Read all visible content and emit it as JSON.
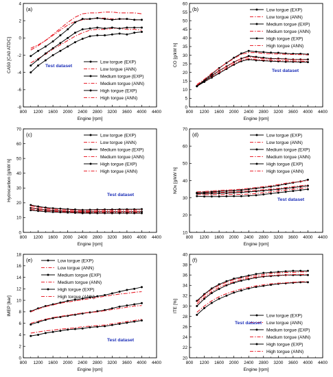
{
  "chart_data": [
    {
      "panel_label": "(a)",
      "type": "line",
      "xlabel": "Engine [rpm]",
      "ylabel": "CA50 [CA0 ATDC]",
      "xlim": [
        800,
        4400
      ],
      "ylim": [
        -8,
        4
      ],
      "xticks": [
        800,
        1200,
        1600,
        2000,
        2400,
        2800,
        3200,
        3600,
        4000,
        4400
      ],
      "yticks": [
        -8,
        -6,
        -4,
        -2,
        0,
        2,
        4
      ],
      "annotation": "Test dataset",
      "legend_position": "lower-right",
      "x": [
        1000,
        1200,
        1400,
        1600,
        1800,
        2000,
        2200,
        2400,
        2600,
        2800,
        3000,
        3200,
        3400,
        3600,
        3800,
        4000
      ],
      "series": [
        {
          "name": "Low torgue (EXP)",
          "style": "exp",
          "values": [
            -4.0,
            -3.2,
            -2.6,
            -2.0,
            -1.5,
            -1.0,
            -0.5,
            -0.1,
            0.2,
            0.3,
            0.3,
            0.4,
            0.5,
            0.4,
            0.6,
            0.7
          ]
        },
        {
          "name": "Low torgue (ANN)",
          "style": "ann",
          "values": [
            -2.9,
            -2.4,
            -1.9,
            -1.3,
            -0.8,
            -0.3,
            0.2,
            0.6,
            0.9,
            1.0,
            1.0,
            1.1,
            1.1,
            1.0,
            1.0,
            0.9
          ]
        },
        {
          "name": "Medium torgue (EXP)",
          "style": "exp",
          "values": [
            -3.2,
            -2.5,
            -1.8,
            -1.2,
            -0.6,
            0.0,
            0.6,
            1.0,
            1.1,
            1.2,
            1.1,
            1.2,
            1.1,
            1.2,
            1.2,
            1.2
          ]
        },
        {
          "name": "Medium torgue (ANN)",
          "style": "ann",
          "values": [
            -1.2,
            -0.8,
            -0.3,
            0.3,
            0.9,
            1.5,
            1.9,
            2.1,
            2.2,
            2.3,
            2.3,
            2.2,
            2.2,
            2.2,
            2.1,
            2.1
          ]
        },
        {
          "name": "High torgue (EXP)",
          "style": "exp",
          "values": [
            -2.1,
            -1.5,
            -1.0,
            -0.4,
            0.3,
            1.0,
            1.8,
            2.2,
            2.2,
            2.3,
            2.2,
            2.1,
            2.2,
            2.2,
            2.1,
            2.1
          ]
        },
        {
          "name": "High torgue (ANN)",
          "style": "ann",
          "values": [
            -1.4,
            -0.9,
            -0.3,
            0.4,
            1.1,
            1.8,
            2.4,
            2.8,
            2.9,
            2.9,
            3.0,
            3.0,
            2.9,
            2.9,
            2.9,
            2.8
          ]
        }
      ]
    },
    {
      "panel_label": "(b)",
      "type": "line",
      "xlabel": "Engine [rpm]",
      "ylabel": "CO [g/kW h]",
      "xlim": [
        800,
        4400
      ],
      "ylim": [
        0,
        60
      ],
      "xticks": [
        800,
        1200,
        1600,
        2000,
        2400,
        2800,
        3200,
        3600,
        4000,
        4400
      ],
      "yticks": [
        0,
        5,
        10,
        15,
        20,
        25,
        30,
        35,
        40,
        45,
        50,
        55,
        60
      ],
      "annotation": "Test dataset",
      "legend_position": "top-right",
      "x": [
        1000,
        1200,
        1400,
        1600,
        1800,
        2000,
        2200,
        2400,
        2600,
        2800,
        3000,
        3200,
        3400,
        3600,
        3800,
        4000
      ],
      "series": [
        {
          "name": "Low torgue (EXP)",
          "style": "exp",
          "values": [
            12.0,
            14.5,
            17.0,
            19.5,
            22.0,
            24.5,
            26.5,
            27.5,
            27.0,
            26.8,
            26.5,
            26.4,
            26.2,
            26.2,
            26.0,
            26.0
          ]
        },
        {
          "name": "Low torgue (ANN)",
          "style": "ann",
          "values": [
            12.5,
            15.0,
            17.5,
            20.0,
            22.5,
            25.0,
            27.0,
            28.0,
            27.5,
            27.2,
            27.0,
            26.8,
            26.8,
            26.6,
            26.5,
            26.4
          ]
        },
        {
          "name": "Medium torgue (EXP)",
          "style": "exp",
          "values": [
            12.0,
            15.0,
            18.0,
            21.0,
            23.5,
            26.0,
            28.0,
            29.5,
            29.0,
            28.5,
            28.0,
            28.0,
            27.8,
            27.5,
            27.5,
            27.5
          ]
        },
        {
          "name": "Medium torgue (ANN)",
          "style": "ann",
          "values": [
            12.5,
            15.5,
            18.5,
            21.0,
            23.5,
            26.0,
            28.0,
            29.0,
            28.5,
            28.0,
            27.8,
            27.8,
            27.6,
            27.5,
            27.4,
            27.3
          ]
        },
        {
          "name": "High torgue (EXP)",
          "style": "exp",
          "values": [
            12.0,
            15.5,
            19.0,
            22.5,
            25.5,
            28.5,
            31.0,
            32.5,
            32.0,
            31.8,
            31.5,
            31.4,
            31.0,
            30.8,
            30.8,
            30.5
          ]
        },
        {
          "name": "High torgue (ANN)",
          "style": "ann",
          "values": [
            13.0,
            16.0,
            19.5,
            22.5,
            25.5,
            28.0,
            30.5,
            31.5,
            31.5,
            31.0,
            30.8,
            30.7,
            30.5,
            30.4,
            30.3,
            30.2
          ]
        }
      ]
    },
    {
      "panel_label": "(c)",
      "type": "line",
      "xlabel": "Engine [rpm]",
      "ylabel": "Hydrocarbon [g/kW h]",
      "xlim": [
        800,
        4400
      ],
      "ylim": [
        0,
        70
      ],
      "xticks": [
        800,
        1200,
        1600,
        2000,
        2400,
        2800,
        3200,
        3600,
        4000,
        4400
      ],
      "yticks": [
        0,
        10,
        20,
        30,
        40,
        50,
        60,
        70
      ],
      "annotation": "Test dataset",
      "legend_position": "top-right",
      "x": [
        1000,
        1200,
        1400,
        1600,
        1800,
        2000,
        2200,
        2400,
        2600,
        2800,
        3000,
        3200,
        3400,
        3600,
        3800,
        4000
      ],
      "series": [
        {
          "name": "Low torgue (EXP)",
          "style": "exp",
          "values": [
            15.0,
            14.5,
            14.0,
            13.8,
            13.6,
            13.4,
            13.2,
            13.0,
            13.0,
            13.0,
            13.0,
            13.0,
            13.0,
            13.0,
            13.0,
            13.0
          ]
        },
        {
          "name": "Low torgue (ANN)",
          "style": "ann",
          "values": [
            15.5,
            15.0,
            14.5,
            14.2,
            14.0,
            13.8,
            13.6,
            13.5,
            13.5,
            13.5,
            13.5,
            13.5,
            13.5,
            13.5,
            13.5,
            13.5
          ]
        },
        {
          "name": "Medium torgue (EXP)",
          "style": "exp",
          "values": [
            16.5,
            15.8,
            15.2,
            14.8,
            14.5,
            14.2,
            14.0,
            13.9,
            13.9,
            14.0,
            14.0,
            14.0,
            14.0,
            14.0,
            14.0,
            14.0
          ]
        },
        {
          "name": "Medium torgue (ANN)",
          "style": "ann",
          "values": [
            16.8,
            16.0,
            15.4,
            15.0,
            14.7,
            14.4,
            14.2,
            14.1,
            14.1,
            14.2,
            14.2,
            14.2,
            14.2,
            14.2,
            14.2,
            14.2
          ]
        },
        {
          "name": "High torgue (EXP)",
          "style": "exp",
          "values": [
            18.5,
            17.5,
            16.8,
            16.3,
            16.0,
            15.7,
            15.5,
            15.2,
            15.3,
            15.4,
            15.5,
            15.5,
            15.6,
            15.6,
            15.6,
            15.7
          ]
        },
        {
          "name": "High torgue (ANN)",
          "style": "ann",
          "values": [
            18.0,
            17.0,
            16.3,
            15.8,
            15.5,
            15.2,
            15.0,
            14.8,
            14.9,
            15.0,
            15.0,
            15.0,
            15.1,
            15.1,
            15.1,
            15.2
          ]
        }
      ]
    },
    {
      "panel_label": "(d)",
      "type": "line",
      "xlabel": "Engine [rpm]",
      "ylabel": "NOx [g/kW h]",
      "xlim": [
        800,
        4400
      ],
      "ylim": [
        10,
        70
      ],
      "xticks": [
        800,
        1200,
        1600,
        2000,
        2400,
        2800,
        3200,
        3600,
        4000,
        4400
      ],
      "yticks": [
        10,
        20,
        30,
        40,
        50,
        60,
        70
      ],
      "annotation": "Test dataset",
      "legend_position": "top-right",
      "x": [
        1000,
        1200,
        1400,
        1600,
        1800,
        2000,
        2200,
        2400,
        2600,
        2800,
        3000,
        3200,
        3400,
        3600,
        3800,
        4000
      ],
      "series": [
        {
          "name": "Low torgue (EXP)",
          "style": "exp",
          "values": [
            31.0,
            30.8,
            30.8,
            30.8,
            30.9,
            31.0,
            31.0,
            31.2,
            31.5,
            32.0,
            32.5,
            33.0,
            33.5,
            34.0,
            34.5,
            35.0
          ]
        },
        {
          "name": "Low torgue (ANN)",
          "style": "ann",
          "values": [
            32.0,
            31.8,
            31.8,
            31.8,
            31.9,
            32.0,
            32.0,
            32.2,
            32.5,
            33.0,
            33.5,
            34.0,
            34.5,
            35.0,
            35.5,
            36.0
          ]
        },
        {
          "name": "Medium torgue (EXP)",
          "style": "exp",
          "values": [
            32.5,
            32.5,
            32.6,
            32.7,
            32.8,
            33.0,
            33.2,
            33.5,
            33.8,
            34.2,
            34.6,
            35.0,
            35.5,
            36.0,
            36.5,
            37.0
          ]
        },
        {
          "name": "Medium torgue (ANN)",
          "style": "ann",
          "values": [
            33.0,
            33.0,
            33.1,
            33.2,
            33.3,
            33.5,
            33.7,
            34.0,
            34.3,
            34.7,
            35.1,
            35.5,
            36.0,
            36.5,
            37.0,
            37.5
          ]
        },
        {
          "name": "High torgue (EXP)",
          "style": "exp",
          "values": [
            33.0,
            33.2,
            33.5,
            33.8,
            34.0,
            34.2,
            34.5,
            35.0,
            35.5,
            36.0,
            36.5,
            37.2,
            38.0,
            38.8,
            39.5,
            40.5
          ]
        },
        {
          "name": "High torgue (ANN)",
          "style": "ann",
          "values": [
            33.5,
            33.7,
            34.0,
            34.3,
            34.5,
            34.7,
            35.0,
            35.5,
            36.0,
            36.5,
            37.0,
            37.7,
            38.5,
            39.0,
            39.5,
            40.0
          ]
        }
      ]
    },
    {
      "panel_label": "(e)",
      "type": "line",
      "xlabel": "Engine [rpm]",
      "ylabel": "IMEP [bar]",
      "xlim": [
        800,
        4400
      ],
      "ylim": [
        0,
        18
      ],
      "xticks": [
        800,
        1200,
        1600,
        2000,
        2400,
        2800,
        3200,
        3600,
        4000,
        4400
      ],
      "yticks": [
        0,
        2,
        4,
        6,
        8,
        10,
        12,
        14,
        16,
        18
      ],
      "annotation": "Test dataset",
      "legend_position": "top-left",
      "x": [
        1000,
        1200,
        1400,
        1600,
        1800,
        2000,
        2200,
        2400,
        2600,
        2800,
        3000,
        3200,
        3400,
        3600,
        3800,
        4000
      ],
      "series": [
        {
          "name": "Low torgue (EXP)",
          "style": "exp",
          "values": [
            3.8,
            4.0,
            4.3,
            4.5,
            4.7,
            4.9,
            5.0,
            5.1,
            5.3,
            5.4,
            5.5,
            5.7,
            5.9,
            6.1,
            6.3,
            6.5
          ]
        },
        {
          "name": "Low torgue (ANN)",
          "style": "ann",
          "values": [
            4.3,
            4.5,
            4.7,
            4.8,
            5.0,
            5.1,
            5.2,
            5.4,
            5.5,
            5.6,
            5.7,
            5.9,
            6.1,
            6.3,
            6.5,
            6.7
          ]
        },
        {
          "name": "Medium torgue (EXP)",
          "style": "exp",
          "values": [
            5.8,
            6.2,
            6.6,
            6.9,
            7.1,
            7.3,
            7.5,
            7.7,
            7.9,
            8.1,
            8.3,
            8.6,
            8.9,
            9.1,
            9.3,
            9.5
          ]
        },
        {
          "name": "Medium torgue (ANN)",
          "style": "ann",
          "values": [
            6.0,
            6.4,
            6.7,
            7.0,
            7.2,
            7.4,
            7.6,
            7.8,
            7.9,
            8.0,
            8.2,
            8.4,
            8.6,
            8.8,
            9.0,
            9.1
          ]
        },
        {
          "name": "High torgue (EXP)",
          "style": "exp",
          "values": [
            8.1,
            8.6,
            9.0,
            9.3,
            9.6,
            9.9,
            10.1,
            10.3,
            10.5,
            10.7,
            10.9,
            11.2,
            11.5,
            11.8,
            12.0,
            12.3
          ]
        },
        {
          "name": "High torgue (ANN)",
          "style": "ann",
          "values": [
            8.0,
            8.5,
            8.9,
            9.2,
            9.5,
            9.7,
            9.9,
            10.1,
            10.3,
            10.5,
            10.7,
            10.9,
            11.1,
            11.2,
            11.4,
            11.5
          ]
        }
      ]
    },
    {
      "panel_label": "(f)",
      "type": "line",
      "xlabel": "Engine [rpm]",
      "ylabel": "ITE [%]",
      "xlim": [
        800,
        4400
      ],
      "ylim": [
        20,
        40
      ],
      "xticks": [
        800,
        1200,
        1600,
        2000,
        2400,
        2800,
        3200,
        3600,
        4000,
        4400
      ],
      "yticks": [
        20,
        22,
        24,
        26,
        28,
        30,
        32,
        34,
        36,
        38,
        40
      ],
      "annotation": "Test dataset",
      "legend_position": "lower-right",
      "x": [
        1000,
        1200,
        1400,
        1600,
        1800,
        2000,
        2200,
        2400,
        2600,
        2800,
        3000,
        3200,
        3400,
        3600,
        3800,
        4000
      ],
      "series": [
        {
          "name": "Low torgue (EXP)",
          "style": "exp",
          "values": [
            28.3,
            29.6,
            30.6,
            31.4,
            32.0,
            32.6,
            33.0,
            33.4,
            33.7,
            33.9,
            34.1,
            34.3,
            34.4,
            34.5,
            34.6,
            34.6
          ]
        },
        {
          "name": "Low torgue (ANN)",
          "style": "ann",
          "values": [
            28.8,
            30.0,
            31.0,
            31.8,
            32.4,
            32.9,
            33.3,
            33.6,
            33.9,
            34.1,
            34.3,
            34.4,
            34.5,
            34.6,
            34.7,
            34.7
          ]
        },
        {
          "name": "Medium torgue (EXP)",
          "style": "exp",
          "values": [
            30.0,
            31.4,
            32.5,
            33.3,
            34.0,
            34.5,
            34.9,
            35.2,
            35.5,
            35.7,
            35.8,
            35.9,
            36.0,
            36.0,
            36.0,
            36.0
          ]
        },
        {
          "name": "Medium torgue (ANN)",
          "style": "ann",
          "values": [
            30.4,
            31.7,
            32.8,
            33.6,
            34.2,
            34.7,
            35.1,
            35.4,
            35.6,
            35.8,
            35.9,
            36.0,
            36.0,
            36.1,
            36.1,
            36.1
          ]
        },
        {
          "name": "High torgue (EXP)",
          "style": "exp",
          "values": [
            31.0,
            32.3,
            33.4,
            34.2,
            34.8,
            35.3,
            35.6,
            35.9,
            36.2,
            36.4,
            36.5,
            36.6,
            36.7,
            36.8,
            36.8,
            36.8
          ]
        },
        {
          "name": "High torgue (ANN)",
          "style": "ann",
          "values": [
            30.8,
            32.1,
            33.2,
            34.0,
            34.6,
            35.1,
            35.4,
            35.7,
            35.9,
            36.1,
            36.3,
            36.4,
            36.5,
            36.5,
            36.6,
            36.6
          ]
        }
      ]
    }
  ]
}
